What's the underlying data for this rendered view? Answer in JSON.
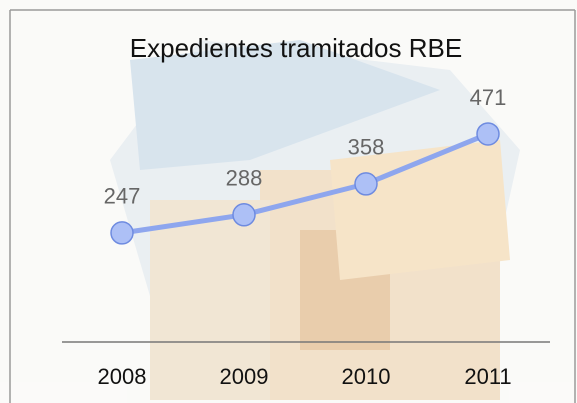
{
  "chart_data": {
    "type": "line",
    "title": "Expedientes tramitados  RBE",
    "categories": [
      "2008",
      "2009",
      "2010",
      "2011"
    ],
    "series": [
      {
        "values": [
          247,
          288,
          358,
          471
        ],
        "color": "#8ea6ee"
      }
    ],
    "ylim": [
      0,
      600
    ],
    "data_labels": true
  }
}
